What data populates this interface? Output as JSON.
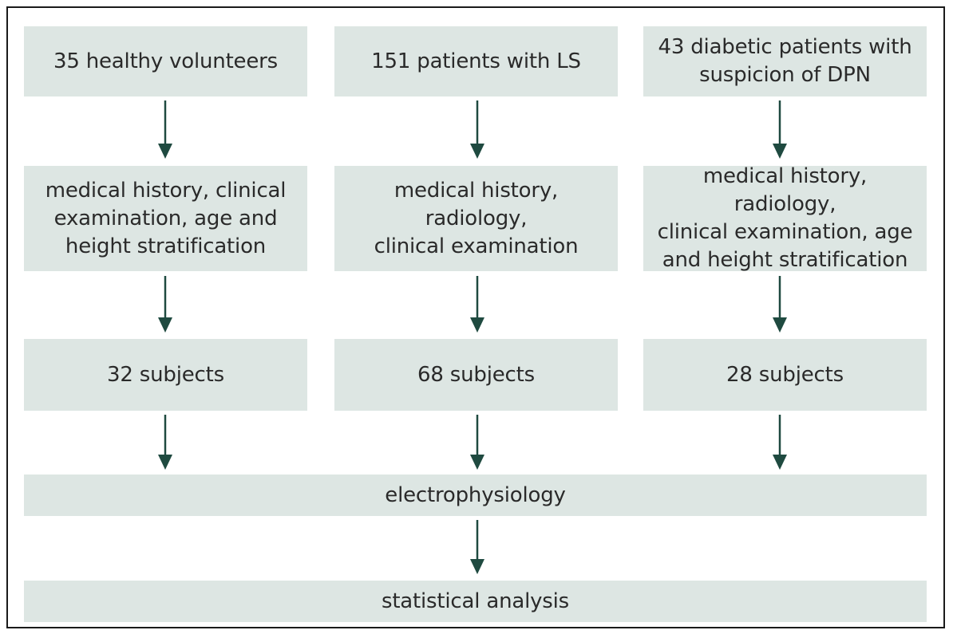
{
  "columns": [
    {
      "source": "35 healthy volunteers",
      "process": "medical history, clinical\nexamination, age and\nheight stratification",
      "result": "32 subjects"
    },
    {
      "source": "151 patients with LS",
      "process": "medical history, radiology,\nclinical examination",
      "result": "68 subjects"
    },
    {
      "source": "43 diabetic patients with\nsuspicion of DPN",
      "process": "medical history, radiology,\nclinical examination, age\nand height stratification",
      "result": "28 subjects"
    }
  ],
  "merge_step": "electrophysiology",
  "final_step": "statistical analysis",
  "colors": {
    "box_fill": "#dde6e3",
    "arrow": "#1f4a40",
    "border": "#1a1a1a"
  }
}
